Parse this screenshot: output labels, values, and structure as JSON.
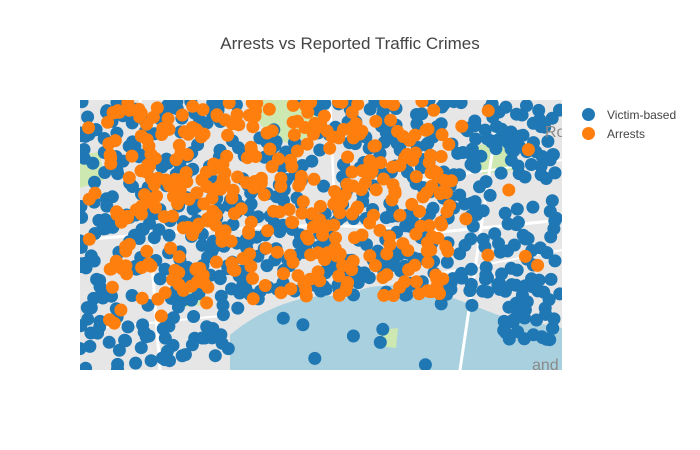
{
  "title": "Arrests vs Reported Traffic Crimes",
  "map": {
    "labels": [
      "Ro",
      "and"
    ],
    "water_color": "#a9d0df",
    "land_color": "#e6e6e6",
    "park_color": "#cde8b0",
    "road_color": "#ffffff"
  },
  "legend": [
    {
      "name": "Victim-based",
      "color": "#1f77b4"
    },
    {
      "name": "Arrests",
      "color": "#ff7f0e"
    }
  ]
}
